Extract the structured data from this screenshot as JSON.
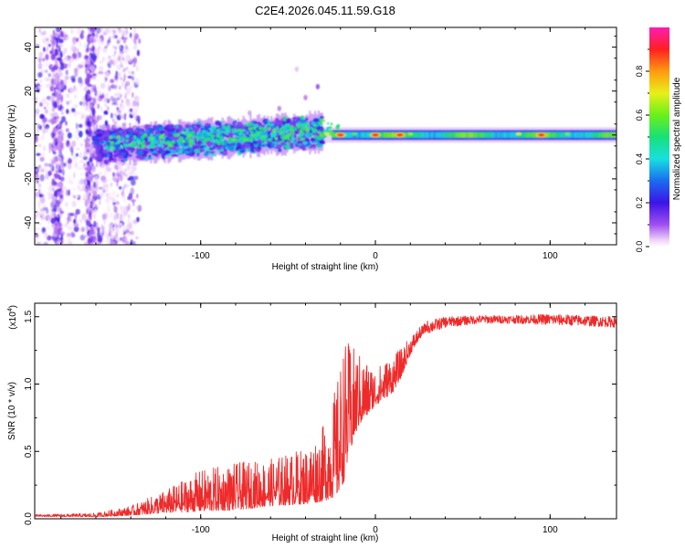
{
  "title": "C2E4.2026.045.11.59.G18",
  "chart_data": [
    {
      "type": "heatmap",
      "xlabel": "Height of straight line (km)",
      "ylabel": "Frequency (Hz)",
      "xlim": [
        -195,
        138
      ],
      "ylim": [
        -50,
        49
      ],
      "xticks": [
        -100,
        0,
        100
      ],
      "yticks": [
        -40,
        -20,
        0,
        20,
        40
      ],
      "colorbar": {
        "label": "Normalized spectral amplitude",
        "range": [
          0,
          1
        ],
        "ticks": [
          0.0,
          0.2,
          0.4,
          0.6,
          0.8
        ]
      },
      "ridge": {
        "description": "Narrow high-amplitude band centered near 0 Hz from -30 km to 138 km; broad noisy blobs -150 to -30 km; diffuse scatter below -150 km",
        "hot_spots_km": [
          -20,
          0,
          14,
          95
        ]
      }
    },
    {
      "type": "line",
      "xlabel": "Height of straight line (km)",
      "ylabel": "SNR (10 * v/v)",
      "y_multiplier": "(x10",
      "y_multiplier_exp": "4",
      "y_multiplier_close": ")",
      "xlim": [
        -195,
        138
      ],
      "ylim": [
        0,
        1.6
      ],
      "xticks": [
        -100,
        0,
        100
      ],
      "yticks": [
        0.0,
        0.5,
        1.0,
        1.5
      ],
      "series": [
        {
          "name": "SNR",
          "color": "#ee2a2a",
          "envelope": {
            "x": [
              -195,
              -160,
              -140,
              -120,
              -100,
              -80,
              -60,
              -40,
              -30,
              -22,
              -18,
              -15,
              -10,
              -5,
              0,
              5,
              10,
              15,
              20,
              25,
              30,
              40,
              60,
              80,
              100,
              120,
              138
            ],
            "base": [
              0.02,
              0.02,
              0.04,
              0.08,
              0.12,
              0.14,
              0.17,
              0.2,
              0.25,
              0.35,
              0.5,
              0.65,
              0.8,
              0.85,
              0.9,
              0.95,
              1.0,
              1.1,
              1.25,
              1.35,
              1.42,
              1.46,
              1.48,
              1.48,
              1.48,
              1.47,
              1.46
            ],
            "spread": [
              0.01,
              0.02,
              0.05,
              0.12,
              0.22,
              0.25,
              0.25,
              0.3,
              0.4,
              0.6,
              0.75,
              0.6,
              0.4,
              0.3,
              0.2,
              0.2,
              0.2,
              0.15,
              0.1,
              0.06,
              0.05,
              0.04,
              0.03,
              0.03,
              0.04,
              0.04,
              0.04
            ]
          }
        }
      ]
    }
  ]
}
